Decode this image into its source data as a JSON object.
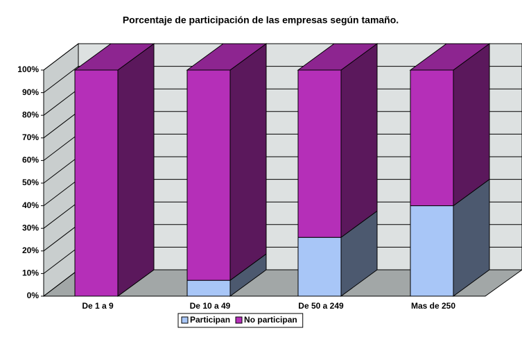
{
  "chart_data": {
    "type": "bar3d_stacked",
    "title": "Porcentaje de participación de las empresas según tamaño.",
    "categories": [
      "De 1 a 9",
      "De 10 a 49",
      "De 50 a 249",
      "Mas de 250"
    ],
    "series": [
      {
        "name": "Participan",
        "color": "#a8c6f7",
        "values": [
          0,
          7,
          26,
          40
        ]
      },
      {
        "name": "No participan",
        "color": "#b52fb8",
        "values": [
          100,
          93,
          74,
          60
        ]
      }
    ],
    "ylim": [
      0,
      100
    ],
    "yticks": [
      {
        "value": 0,
        "label": "0%"
      },
      {
        "value": 10,
        "label": "10%"
      },
      {
        "value": 20,
        "label": "20%"
      },
      {
        "value": 30,
        "label": "30%"
      },
      {
        "value": 40,
        "label": "40%"
      },
      {
        "value": 50,
        "label": "50%"
      },
      {
        "value": 60,
        "label": "60%"
      },
      {
        "value": 70,
        "label": "70%"
      },
      {
        "value": 80,
        "label": "80%"
      },
      {
        "value": 90,
        "label": "90%"
      },
      {
        "value": 100,
        "label": "100%"
      }
    ],
    "grid": true,
    "legend": "bottom"
  }
}
